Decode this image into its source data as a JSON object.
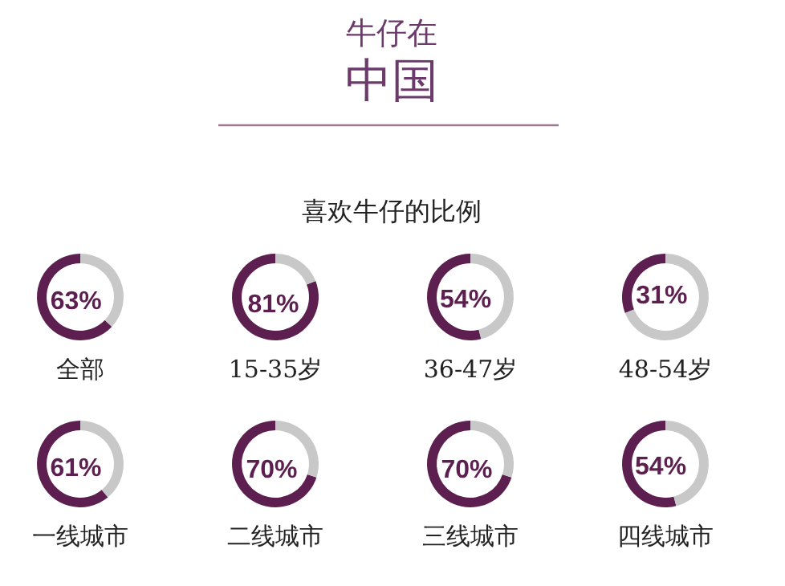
{
  "chart_data": [
    {
      "type": "other",
      "title": "牛仔在",
      "subtitle": "中国",
      "annotations": [
        "喜欢牛仔的比例"
      ]
    },
    {
      "type": "donut",
      "title": "全部",
      "values": [
        63,
        37
      ],
      "colors": [
        "#5c1f4f",
        "#c8c8c8"
      ],
      "value_labels": [
        "63%",
        null
      ]
    },
    {
      "type": "donut",
      "title": "15-35岁",
      "values": [
        81,
        19
      ],
      "colors": [
        "#5c1f4f",
        "#c8c8c8"
      ],
      "value_labels": [
        "81%",
        null
      ]
    },
    {
      "type": "donut",
      "title": "36-47岁",
      "values": [
        54,
        46
      ],
      "colors": [
        "#5c1f4f",
        "#c8c8c8"
      ],
      "value_labels": [
        "54%",
        null
      ]
    },
    {
      "type": "donut",
      "title": "48-54岁",
      "values": [
        31,
        69
      ],
      "colors": [
        "#5c1f4f",
        "#c8c8c8"
      ],
      "value_labels": [
        "31%",
        null
      ]
    },
    {
      "type": "donut",
      "title": "一线城市",
      "values": [
        61,
        39
      ],
      "colors": [
        "#5c1f4f",
        "#c8c8c8"
      ],
      "value_labels": [
        "61%",
        null
      ]
    },
    {
      "type": "donut",
      "title": "二线城市",
      "values": [
        70,
        30
      ],
      "colors": [
        "#5c1f4f",
        "#c8c8c8"
      ],
      "value_labels": [
        "70%",
        null
      ]
    },
    {
      "type": "donut",
      "title": "三线城市",
      "values": [
        70,
        30
      ],
      "colors": [
        "#5c1f4f",
        "#c8c8c8"
      ],
      "value_labels": [
        "70%",
        null
      ]
    },
    {
      "type": "donut",
      "title": "四线城市",
      "values": [
        54,
        46
      ],
      "colors": [
        "#5c1f4f",
        "#c8c8c8"
      ],
      "value_labels": [
        "54%",
        null
      ]
    }
  ]
}
